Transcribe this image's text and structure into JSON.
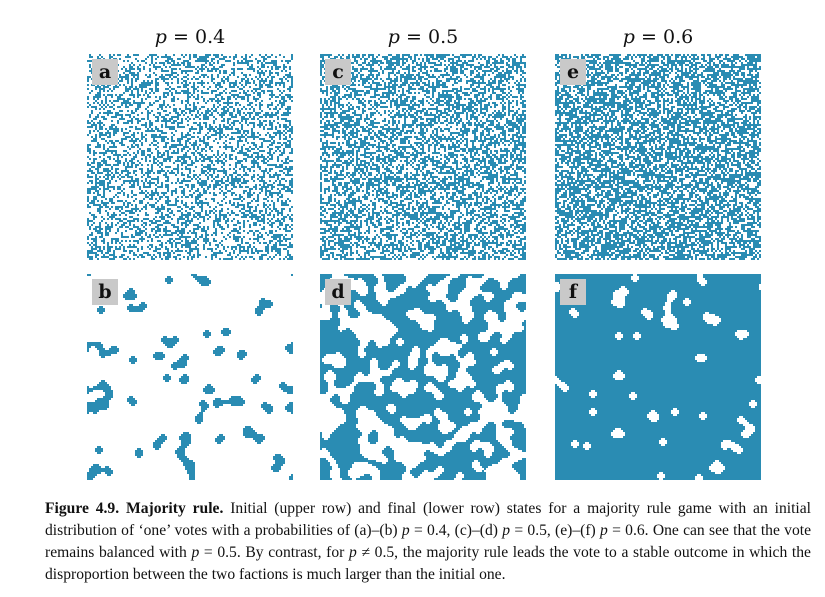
{
  "columns": [
    {
      "p_label": "p",
      "p_value": "0.4"
    },
    {
      "p_label": "p",
      "p_value": "0.5"
    },
    {
      "p_label": "p",
      "p_value": "0.6"
    }
  ],
  "panels": {
    "a": {
      "letter": "a",
      "row": "initial",
      "p": 0.4
    },
    "b": {
      "letter": "b",
      "row": "final",
      "p": 0.4
    },
    "c": {
      "letter": "c",
      "row": "initial",
      "p": 0.5
    },
    "d": {
      "letter": "d",
      "row": "final",
      "p": 0.5
    },
    "e": {
      "letter": "e",
      "row": "initial",
      "p": 0.6
    },
    "f": {
      "letter": "f",
      "row": "final",
      "p": 0.6
    }
  },
  "colors": {
    "vote_one": "#2a8cb3",
    "vote_zero": "#ffffff",
    "label_bg": "#c9c9c9"
  },
  "caption": {
    "figure_label": "Figure 4.9.",
    "title": "Majority rule.",
    "s1": "Initial (upper row) and final (lower row) states for a majority rule game with an initial distribution of ‘one’ votes with a probabilities of (a)–(b)",
    "s2": "= 0.4, (c)–(d)",
    "s3": "= 0.5, (e)–(f)",
    "s4": "= 0.6. One can see that the vote remains balanced with",
    "s5": "= 0.5. By contrast, for",
    "s6": "≠ 0.5, the majority rule leads the vote to a stable outcome in which the disproportion between the two factions is much larger than the initial one.",
    "p_symbol": "p"
  }
}
